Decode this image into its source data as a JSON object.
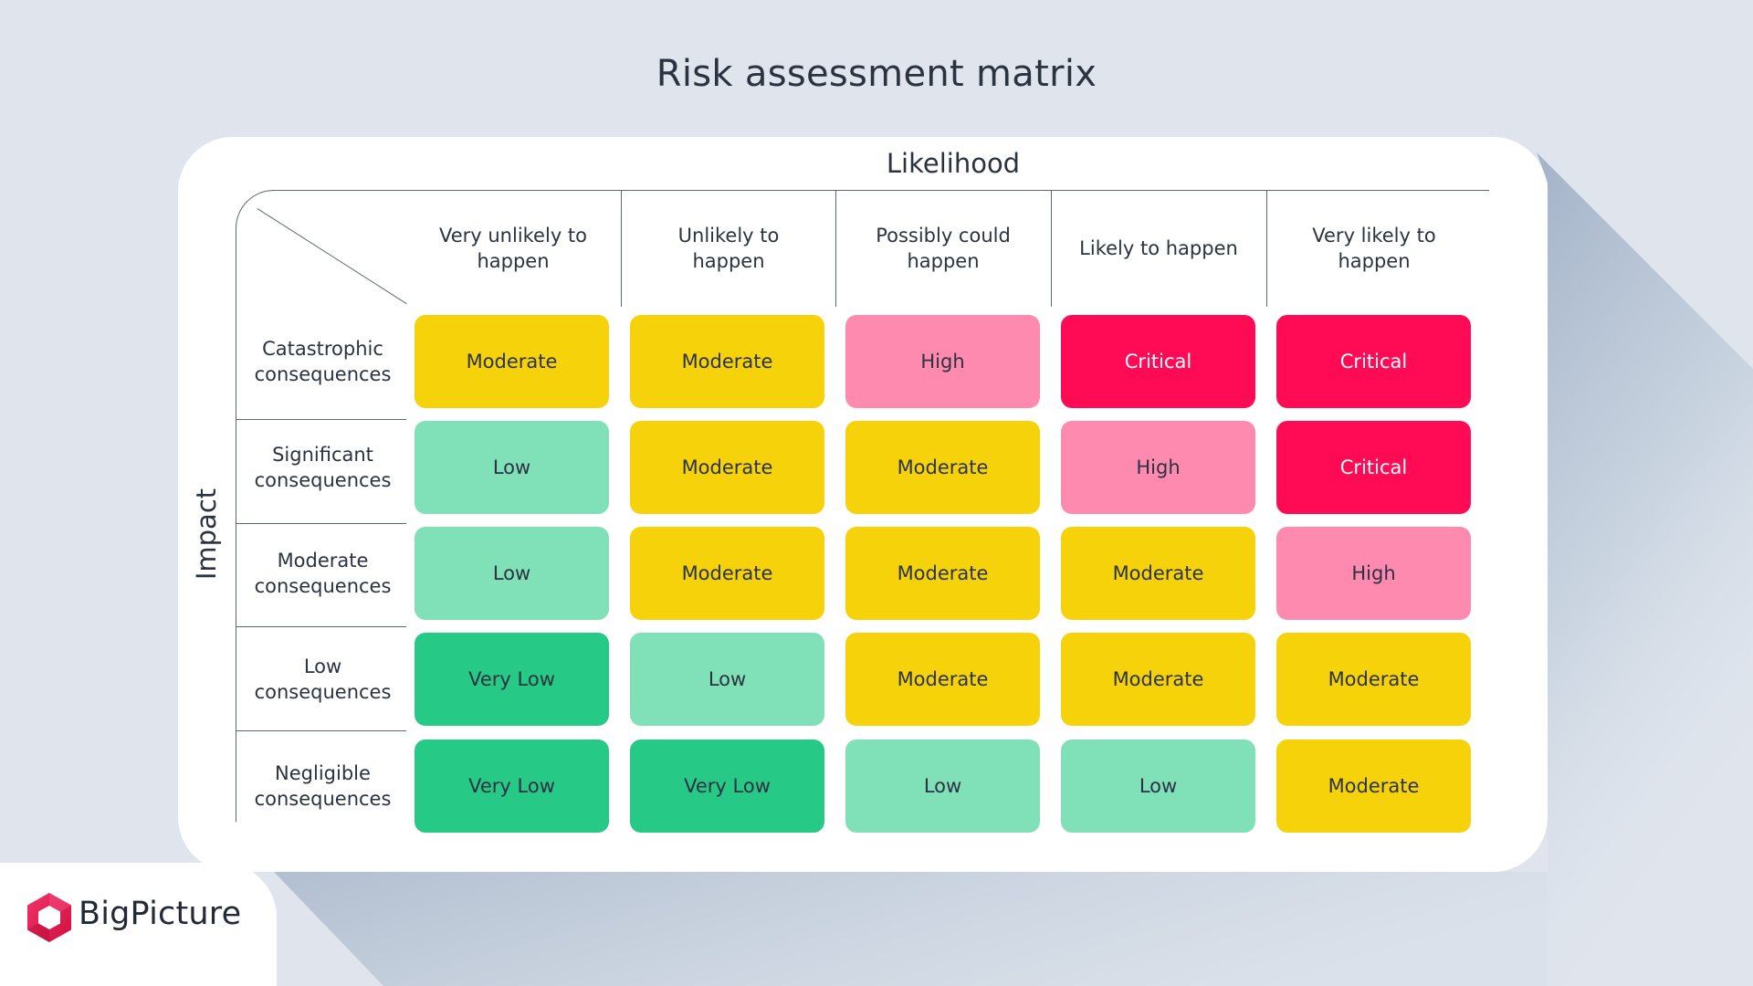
{
  "title": "Risk assessment matrix",
  "axes": {
    "x_label": "Likelihood",
    "y_label": "Impact"
  },
  "columns": [
    {
      "label": "Very unlikely to happen"
    },
    {
      "label": "Unlikely to happen"
    },
    {
      "label": "Possibly could happen"
    },
    {
      "label": "Likely to happen"
    },
    {
      "label": "Very likely to happen"
    }
  ],
  "rows": [
    {
      "label": "Catastrophic consequences",
      "cells": [
        "Moderate",
        "Moderate",
        "High",
        "Critical",
        "Critical"
      ]
    },
    {
      "label": "Significant consequences",
      "cells": [
        "Low",
        "Moderate",
        "Moderate",
        "High",
        "Critical"
      ]
    },
    {
      "label": "Moderate consequences",
      "cells": [
        "Low",
        "Moderate",
        "Moderate",
        "Moderate",
        "High"
      ]
    },
    {
      "label": "Low consequences",
      "cells": [
        "Very Low",
        "Low",
        "Moderate",
        "Moderate",
        "Moderate"
      ]
    },
    {
      "label": "Negligible consequences",
      "cells": [
        "Very Low",
        "Very Low",
        "Low",
        "Low",
        "Moderate"
      ]
    }
  ],
  "levels": {
    "Very Low": {
      "bg": "#26C986",
      "fg": "#2B3240"
    },
    "Low": {
      "bg": "#80E0B8",
      "fg": "#2B3240"
    },
    "Moderate": {
      "bg": "#F6D20B",
      "fg": "#2B3240"
    },
    "High": {
      "bg": "#FF8AB0",
      "fg": "#2B3240"
    },
    "Critical": {
      "bg": "#FF0A55",
      "fg": "#FFFFFF"
    }
  },
  "brand": {
    "name": "BigPicture",
    "icon": "hexagon-logo-icon",
    "color": "#E8194F"
  }
}
